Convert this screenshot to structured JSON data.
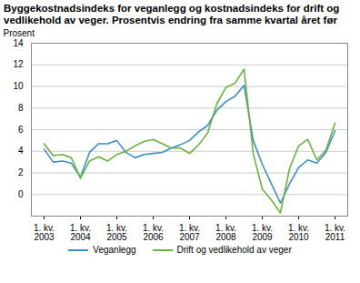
{
  "chart_data": {
    "type": "line",
    "title": "Byggekostnadsindeks for veganlegg og kostnadsindeks for drift og vedlikehold av veger. Prosentvis endring fra samme kvartal året før",
    "y_label": "Prosent",
    "categories": [
      "1. kv. 2003",
      null,
      null,
      null,
      "1. kv. 2004",
      null,
      null,
      null,
      "1. kv. 2005",
      null,
      null,
      null,
      "1. kv. 2006",
      null,
      null,
      null,
      "1. kv. 2007",
      null,
      null,
      null,
      "1. kv. 2008",
      null,
      null,
      null,
      "1. kv. 2009",
      null,
      null,
      null,
      "1. kv. 2010",
      null,
      null,
      null,
      "1. kv. 2011"
    ],
    "series": [
      {
        "name": "Veganlegg",
        "color": "#3a8fc8",
        "values": [
          4.2,
          3.0,
          3.1,
          2.9,
          1.6,
          3.9,
          4.7,
          4.7,
          5.0,
          3.9,
          3.4,
          3.7,
          3.8,
          3.9,
          4.3,
          4.6,
          5.0,
          5.8,
          6.4,
          7.8,
          8.6,
          9.1,
          10.1,
          5.0,
          2.8,
          1.0,
          -0.8,
          1.0,
          2.5,
          3.2,
          2.9,
          3.9,
          5.9
        ]
      },
      {
        "name": "Drift og vedlikehold av veger",
        "color": "#6ab43e",
        "values": [
          4.7,
          3.6,
          3.7,
          3.4,
          1.5,
          3.1,
          3.5,
          3.1,
          3.7,
          4.0,
          4.5,
          4.9,
          5.1,
          4.7,
          4.3,
          4.3,
          3.8,
          4.6,
          5.7,
          8.4,
          9.9,
          10.3,
          11.6,
          3.8,
          0.5,
          -0.5,
          -1.7,
          2.4,
          4.5,
          5.1,
          3.2,
          4.1,
          6.6
        ]
      }
    ],
    "ylim": [
      -2,
      14
    ],
    "yticks": [
      0,
      2,
      4,
      6,
      8,
      10,
      12,
      14
    ],
    "grid": true,
    "legend": "bottom"
  }
}
